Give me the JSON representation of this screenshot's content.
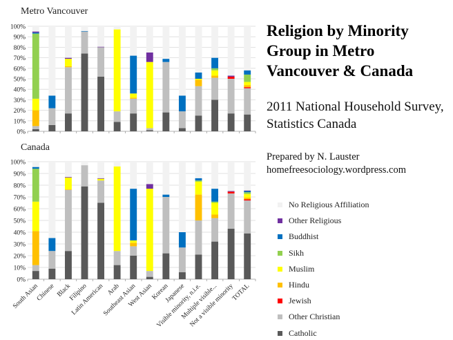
{
  "title": "Religion by Minority Group in Metro Vancouver & Canada",
  "subtitle": "2011 National Household Survey, Statistics Canada",
  "credit_line1": "Prepared by N. Lauster",
  "credit_line2": "homefreesociology.wordpress.com",
  "chart_data": [
    {
      "type": "bar",
      "stacked": true,
      "title": "Metro Vancouver",
      "ylim": [
        0,
        100
      ],
      "yticks": [
        "0%",
        "10%",
        "20%",
        "30%",
        "40%",
        "50%",
        "60%",
        "70%",
        "80%",
        "90%",
        "100%"
      ],
      "grid": true,
      "categories": [
        "South Asian",
        "Chinese",
        "Black",
        "Filipino",
        "Latin American",
        "Arab",
        "Southeast Asian",
        "West Asian",
        "Korean",
        "Japanese",
        "Visible minority, n.i.e.",
        "Multiple visible...",
        "Not a visible minority",
        "TOTAL"
      ],
      "series": [
        {
          "name": "Catholic",
          "values": [
            2,
            6,
            17,
            74,
            52,
            9,
            17,
            1,
            18,
            3,
            15,
            30,
            17,
            16
          ]
        },
        {
          "name": "Other Christian",
          "values": [
            3,
            16,
            44,
            21,
            28,
            10,
            14,
            2,
            48,
            16,
            28,
            21,
            33,
            25
          ]
        },
        {
          "name": "Jewish",
          "values": [
            0,
            0,
            0,
            0,
            0,
            0,
            0,
            0,
            0,
            0,
            0,
            0,
            2,
            1
          ]
        },
        {
          "name": "Hindu",
          "values": [
            15,
            0,
            1,
            0,
            0,
            0,
            1,
            0,
            0,
            0,
            6,
            2,
            0,
            2
          ]
        },
        {
          "name": "Muslim",
          "values": [
            11,
            0,
            7,
            0,
            0,
            78,
            4,
            63,
            0,
            0,
            1,
            5,
            0,
            3
          ]
        },
        {
          "name": "Sikh",
          "values": [
            62,
            0,
            0,
            0,
            0,
            0,
            0,
            0,
            0,
            0,
            0,
            2,
            0,
            7
          ]
        },
        {
          "name": "Buddhist",
          "values": [
            1,
            12,
            0,
            0.5,
            0,
            0,
            36,
            0,
            3,
            15,
            6,
            10,
            0,
            4
          ]
        },
        {
          "name": "Other Religious",
          "values": [
            1,
            0,
            1,
            0,
            0.5,
            0,
            0,
            9,
            0,
            0,
            0,
            0,
            1,
            0
          ]
        },
        {
          "name": "No Religious Affiliation",
          "values": [
            5,
            66,
            30,
            4.5,
            19.5,
            3,
            28,
            25,
            31,
            66,
            44,
            30,
            47,
            42
          ]
        }
      ]
    },
    {
      "type": "bar",
      "stacked": true,
      "title": "Canada",
      "ylim": [
        0,
        100
      ],
      "yticks": [
        "0%",
        "10%",
        "20%",
        "30%",
        "40%",
        "50%",
        "60%",
        "70%",
        "80%",
        "90%",
        "100%"
      ],
      "grid": true,
      "categories": [
        "South Asian",
        "Chinese",
        "Black",
        "Filipino",
        "Latin American",
        "Arab",
        "Southeast Asian",
        "West Asian",
        "Korean",
        "Japanese",
        "Visible minority, n.i.e.",
        "Multiple visible...",
        "Not a visible minority",
        "TOTAL"
      ],
      "series": [
        {
          "name": "Catholic",
          "values": [
            7,
            9,
            24,
            79,
            65,
            12,
            20,
            2,
            22,
            6,
            21,
            32,
            43,
            39
          ]
        },
        {
          "name": "Other Christian",
          "values": [
            5,
            15,
            52,
            18,
            19,
            12,
            8,
            5,
            48,
            21,
            29,
            20,
            30,
            28
          ]
        },
        {
          "name": "Jewish",
          "values": [
            0,
            0,
            0,
            0,
            0,
            0,
            0,
            0,
            0,
            0,
            0,
            0,
            1.5,
            1
          ]
        },
        {
          "name": "Hindu",
          "values": [
            29,
            0,
            0.5,
            0,
            0,
            0,
            3,
            0,
            0,
            0,
            22,
            3,
            0,
            1.5
          ]
        },
        {
          "name": "Muslim",
          "values": [
            25,
            0,
            10,
            0,
            1.5,
            72,
            2,
            70,
            0,
            0,
            11,
            10,
            0,
            3
          ]
        },
        {
          "name": "Sikh",
          "values": [
            28,
            0,
            0,
            0,
            0,
            0,
            0,
            0,
            0,
            0,
            1,
            1,
            0,
            1.5
          ]
        },
        {
          "name": "Buddhist",
          "values": [
            1.5,
            11,
            0,
            0,
            0,
            0,
            44,
            0,
            2,
            13,
            2,
            11,
            0,
            1
          ]
        },
        {
          "name": "Other Religious",
          "values": [
            0,
            0,
            0.5,
            0,
            0.5,
            0,
            0,
            4,
            0,
            0,
            0,
            0,
            0.5,
            0.5
          ]
        },
        {
          "name": "No Religious Affiliation",
          "values": [
            4.5,
            65,
            13,
            3,
            14,
            4,
            23,
            19,
            28,
            60,
            14,
            23,
            25,
            24.5
          ]
        }
      ]
    }
  ],
  "legend": [
    {
      "label": "No Religious Affiliation",
      "color": "#f2f2f2"
    },
    {
      "label": "Other Religious",
      "color": "#7030a0"
    },
    {
      "label": "Buddhist",
      "color": "#0070c0"
    },
    {
      "label": "Sikh",
      "color": "#92d050"
    },
    {
      "label": "Muslim",
      "color": "#ffff00"
    },
    {
      "label": "Hindu",
      "color": "#ffc000"
    },
    {
      "label": "Jewish",
      "color": "#ff0000"
    },
    {
      "label": "Other Christian",
      "color": "#bfbfbf"
    },
    {
      "label": "Catholic",
      "color": "#595959"
    }
  ]
}
